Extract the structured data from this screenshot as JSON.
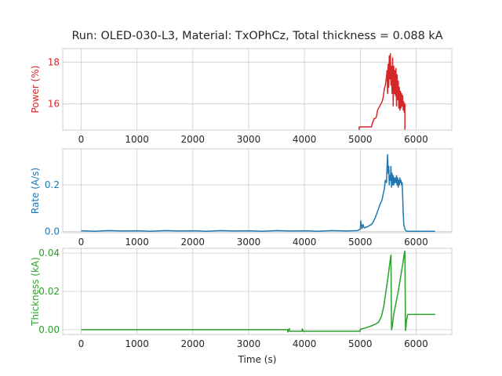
{
  "chart_data": {
    "title": "Run: OLED-030-L3, Material: TxOPhCz, Total thickness = 0.088 kA",
    "xlabel": "Time (s)",
    "grid": true,
    "shared_x_ticks": [
      0,
      1000,
      2000,
      3000,
      4000,
      5000,
      6000
    ],
    "xlim": [
      -330,
      6640
    ],
    "panels": [
      {
        "type": "line",
        "ylabel": "Power (%)",
        "color": "#d62728",
        "ylim": [
          14.75,
          18.65
        ],
        "yticks": [
          16,
          18
        ],
        "series": [
          {
            "x": [
              4980,
              4980,
              5050,
              5200,
              5220,
              5250,
              5270,
              5290,
              5310,
              5330,
              5350,
              5370,
              5390,
              5410,
              5430,
              5450,
              5470,
              5480,
              5490,
              5500,
              5510,
              5520,
              5530,
              5540,
              5550,
              5560,
              5570,
              5580,
              5590,
              5600,
              5610,
              5620,
              5630,
              5640,
              5650,
              5660,
              5670,
              5680,
              5690,
              5700,
              5710,
              5720,
              5730,
              5740,
              5750,
              5760,
              5770,
              5780,
              5790,
              5800,
              5800
            ],
            "y": [
              14.75,
              14.9,
              14.9,
              14.9,
              15.1,
              15.3,
              15.3,
              15.4,
              15.7,
              15.8,
              15.9,
              16.0,
              16.1,
              16.3,
              16.7,
              16.9,
              17.3,
              17.6,
              16.5,
              17.9,
              16.8,
              18.3,
              17.2,
              18.4,
              16.9,
              17.8,
              16.5,
              18.2,
              15.9,
              17.8,
              16.5,
              17.6,
              16.4,
              17.7,
              15.9,
              17.4,
              16.2,
              17.1,
              15.8,
              16.8,
              15.7,
              16.6,
              15.8,
              16.5,
              15.9,
              16.4,
              15.7,
              16.1,
              15.6,
              16.0,
              14.75
            ]
          }
        ]
      },
      {
        "type": "line",
        "ylabel": "Rate (A/s)",
        "color": "#1f77b4",
        "ylim": [
          -0.005,
          0.355
        ],
        "yticks": [
          0.0,
          0.2
        ],
        "yticklabels": [
          "0.0",
          "0.2"
        ],
        "series": [
          {
            "x": [
              0,
              250,
              500,
              750,
              1000,
              1250,
              1500,
              1750,
              2000,
              2250,
              2500,
              2750,
              3000,
              3250,
              3500,
              3750,
              4000,
              4250,
              4500,
              4750,
              4950,
              5000,
              5010,
              5030,
              5050,
              5070,
              5100,
              5130,
              5160,
              5200,
              5230,
              5270,
              5300,
              5330,
              5360,
              5390,
              5410,
              5430,
              5450,
              5470,
              5480,
              5490,
              5500,
              5510,
              5520,
              5530,
              5540,
              5550,
              5560,
              5570,
              5580,
              5590,
              5600,
              5610,
              5620,
              5630,
              5640,
              5650,
              5660,
              5670,
              5680,
              5690,
              5700,
              5710,
              5720,
              5730,
              5740,
              5750,
              5760,
              5770,
              5780,
              5800,
              5820,
              5850,
              5900,
              6000,
              6100,
              6200,
              6340
            ],
            "y": [
              0.003,
              0.001,
              0.004,
              0.002,
              0.003,
              0.001,
              0.004,
              0.002,
              0.003,
              0.001,
              0.004,
              0.002,
              0.003,
              0.001,
              0.004,
              0.002,
              0.003,
              0.001,
              0.004,
              0.002,
              0.004,
              0.01,
              0.045,
              0.012,
              0.03,
              0.015,
              0.018,
              0.02,
              0.025,
              0.03,
              0.04,
              0.06,
              0.08,
              0.1,
              0.12,
              0.135,
              0.16,
              0.18,
              0.22,
              0.21,
              0.28,
              0.33,
              0.25,
              0.28,
              0.2,
              0.24,
              0.22,
              0.28,
              0.19,
              0.25,
              0.2,
              0.24,
              0.2,
              0.23,
              0.21,
              0.23,
              0.21,
              0.24,
              0.2,
              0.23,
              0.19,
              0.22,
              0.2,
              0.23,
              0.21,
              0.22,
              0.2,
              0.21,
              0.15,
              0.08,
              0.03,
              0.01,
              0.002,
              0.001,
              0.001,
              0.001,
              0.001,
              0.001,
              0.001
            ]
          }
        ]
      },
      {
        "type": "line",
        "ylabel": "Thickness (kA)",
        "color": "#2ca02c",
        "ylim": [
          -0.0025,
          0.0425
        ],
        "yticks": [
          0.0,
          0.02,
          0.04
        ],
        "yticklabels": [
          "0.00",
          "0.02",
          "0.04"
        ],
        "series": [
          {
            "x": [
              0,
              1000,
              2000,
              3000,
              3700,
              3700,
              3730,
              3730,
              3960,
              3960,
              3980,
              3980,
              5000,
              5000,
              5100,
              5200,
              5280,
              5330,
              5380,
              5420,
              5460,
              5500,
              5530,
              5550,
              5560,
              5570,
              5600,
              5640,
              5680,
              5720,
              5760,
              5790,
              5800,
              5810,
              5820,
              5830,
              5850,
              5900,
              6000,
              6100,
              6200,
              6340
            ],
            "y": [
              0.0,
              0.0,
              0.0,
              0.0,
              0.0,
              -0.0012,
              0.0006,
              -0.0008,
              -0.0008,
              0.0004,
              -0.0008,
              -0.0008,
              -0.0008,
              0.0002,
              0.001,
              0.002,
              0.003,
              0.004,
              0.007,
              0.012,
              0.02,
              0.028,
              0.035,
              0.039,
              0.0,
              0.001,
              0.008,
              0.014,
              0.02,
              0.027,
              0.034,
              0.04,
              0.041,
              -0.0005,
              0.002,
              0.005,
              0.008,
              0.008,
              0.008,
              0.008,
              0.008,
              0.008
            ]
          }
        ]
      }
    ]
  }
}
